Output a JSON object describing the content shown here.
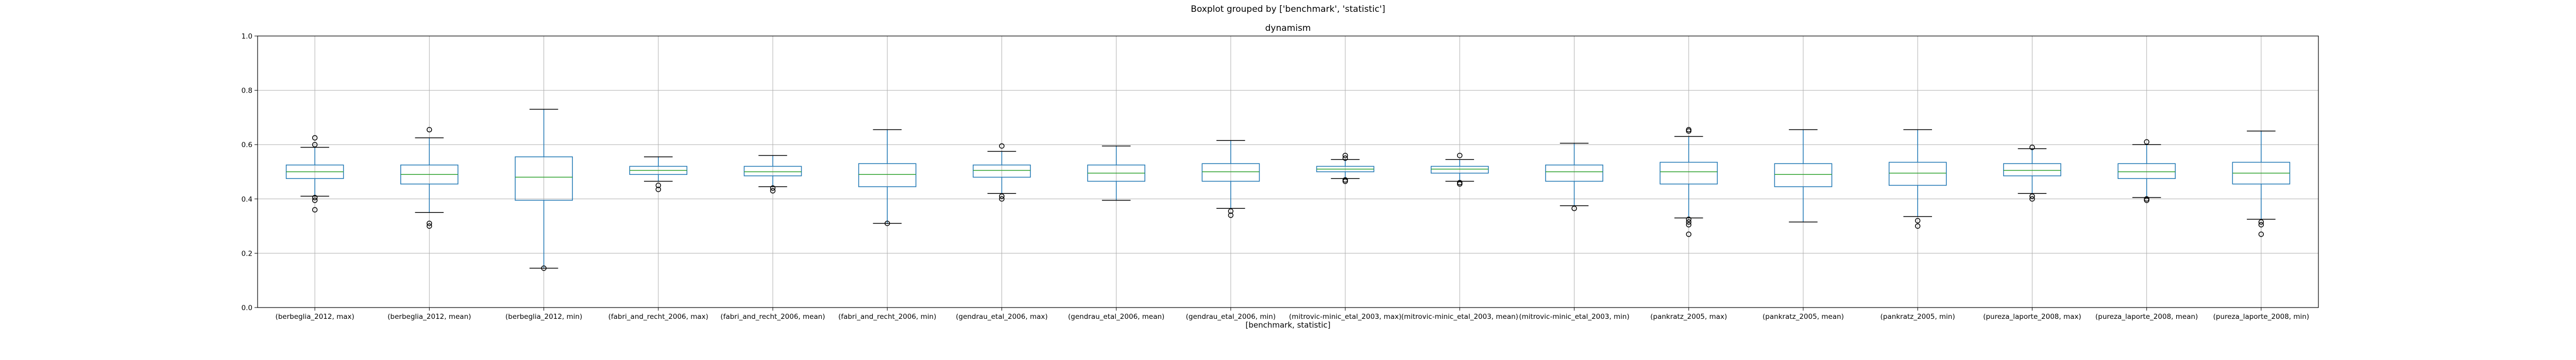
{
  "chart_data": {
    "type": "box",
    "title": "Boxplot grouped by ['benchmark', 'statistic']",
    "subtitle": "dynamism",
    "xlabel": "[benchmark, statistic]",
    "ylabel": "",
    "ylim": [
      0.0,
      1.0
    ],
    "yticks": [
      "0.0",
      "0.2",
      "0.4",
      "0.6",
      "0.8",
      "1.0"
    ],
    "grid": true,
    "colors": {
      "box": "#1f77b4",
      "median": "#2ca02c",
      "whisker": "#1f77b4",
      "cap": "#000000",
      "grid": "#b0b0b0",
      "flier": "#000000"
    },
    "categories": [
      "(berbeglia_2012, max)",
      "(berbeglia_2012, mean)",
      "(berbeglia_2012, min)",
      "(fabri_and_recht_2006, max)",
      "(fabri_and_recht_2006, mean)",
      "(fabri_and_recht_2006, min)",
      "(gendrau_etal_2006, max)",
      "(gendrau_etal_2006, mean)",
      "(gendrau_etal_2006, min)",
      "(mitrovic-minic_etal_2003, max)",
      "(mitrovic-minic_etal_2003, mean)",
      "(mitrovic-minic_etal_2003, min)",
      "(pankratz_2005, max)",
      "(pankratz_2005, mean)",
      "(pankratz_2005, min)",
      "(pureza_laporte_2008, max)",
      "(pureza_laporte_2008, mean)",
      "(pureza_laporte_2008, min)"
    ],
    "boxes": [
      {
        "whislo": 0.41,
        "q1": 0.475,
        "med": 0.5,
        "q3": 0.525,
        "whishi": 0.59,
        "fliers": [
          0.36,
          0.395,
          0.405,
          0.6,
          0.625
        ]
      },
      {
        "whislo": 0.35,
        "q1": 0.455,
        "med": 0.49,
        "q3": 0.525,
        "whishi": 0.625,
        "fliers": [
          0.3,
          0.31,
          0.655
        ]
      },
      {
        "whislo": 0.145,
        "q1": 0.395,
        "med": 0.48,
        "q3": 0.555,
        "whishi": 0.73,
        "fliers": [
          0.145
        ]
      },
      {
        "whislo": 0.465,
        "q1": 0.49,
        "med": 0.505,
        "q3": 0.52,
        "whishi": 0.555,
        "fliers": [
          0.435,
          0.45
        ]
      },
      {
        "whislo": 0.445,
        "q1": 0.485,
        "med": 0.5,
        "q3": 0.52,
        "whishi": 0.56,
        "fliers": [
          0.43,
          0.44
        ]
      },
      {
        "whislo": 0.31,
        "q1": 0.445,
        "med": 0.49,
        "q3": 0.53,
        "whishi": 0.655,
        "fliers": [
          0.31
        ]
      },
      {
        "whislo": 0.42,
        "q1": 0.48,
        "med": 0.505,
        "q3": 0.525,
        "whishi": 0.575,
        "fliers": [
          0.4,
          0.41,
          0.595
        ]
      },
      {
        "whislo": 0.395,
        "q1": 0.465,
        "med": 0.495,
        "q3": 0.525,
        "whishi": 0.595,
        "fliers": []
      },
      {
        "whislo": 0.365,
        "q1": 0.465,
        "med": 0.5,
        "q3": 0.53,
        "whishi": 0.615,
        "fliers": [
          0.34,
          0.355
        ]
      },
      {
        "whislo": 0.475,
        "q1": 0.5,
        "med": 0.51,
        "q3": 0.52,
        "whishi": 0.545,
        "fliers": [
          0.465,
          0.47,
          0.55,
          0.56
        ]
      },
      {
        "whislo": 0.465,
        "q1": 0.495,
        "med": 0.51,
        "q3": 0.52,
        "whishi": 0.545,
        "fliers": [
          0.455,
          0.46,
          0.56
        ]
      },
      {
        "whislo": 0.375,
        "q1": 0.465,
        "med": 0.5,
        "q3": 0.525,
        "whishi": 0.605,
        "fliers": [
          0.365
        ]
      },
      {
        "whislo": 0.33,
        "q1": 0.455,
        "med": 0.5,
        "q3": 0.535,
        "whishi": 0.63,
        "fliers": [
          0.27,
          0.305,
          0.315,
          0.325,
          0.65,
          0.655
        ]
      },
      {
        "whislo": 0.315,
        "q1": 0.445,
        "med": 0.49,
        "q3": 0.53,
        "whishi": 0.655,
        "fliers": []
      },
      {
        "whislo": 0.335,
        "q1": 0.45,
        "med": 0.495,
        "q3": 0.535,
        "whishi": 0.655,
        "fliers": [
          0.3,
          0.32
        ]
      },
      {
        "whislo": 0.42,
        "q1": 0.485,
        "med": 0.505,
        "q3": 0.53,
        "whishi": 0.585,
        "fliers": [
          0.4,
          0.41,
          0.59
        ]
      },
      {
        "whislo": 0.405,
        "q1": 0.475,
        "med": 0.5,
        "q3": 0.53,
        "whishi": 0.6,
        "fliers": [
          0.395,
          0.4,
          0.61
        ]
      },
      {
        "whislo": 0.325,
        "q1": 0.455,
        "med": 0.495,
        "q3": 0.535,
        "whishi": 0.65,
        "fliers": [
          0.27,
          0.305,
          0.315
        ]
      }
    ]
  }
}
